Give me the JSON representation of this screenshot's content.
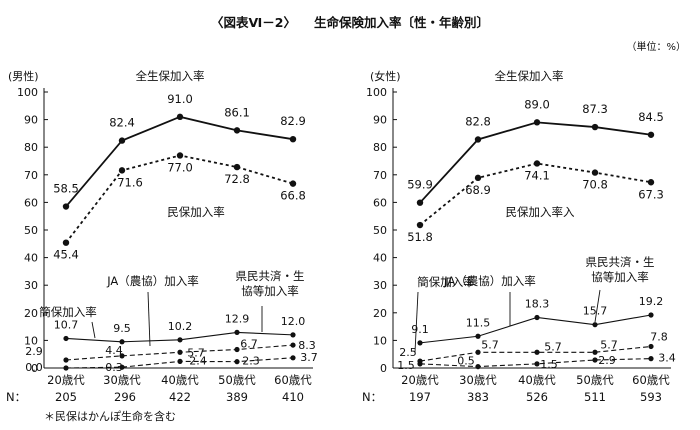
{
  "header": {
    "figure_label": "〈図表Ⅵ－2〉",
    "title": "生命保険加入率〔性・年齢別〕",
    "unit_note": "（単位：%）"
  },
  "footnote": "＊民保はかんぽ生命を含む",
  "chart_data": [
    {
      "type": "line",
      "panel": "(男性)",
      "categories": [
        "20歳代",
        "30歳代",
        "40歳代",
        "50歳代",
        "60歳代"
      ],
      "n_label": "N：",
      "n_values": [
        "205",
        "296",
        "422",
        "389",
        "410"
      ],
      "ylim": [
        0,
        100
      ],
      "yticks": [
        0,
        10,
        20,
        30,
        40,
        50,
        60,
        70,
        80,
        90,
        100
      ],
      "grid": false,
      "series": [
        {
          "name": "全生保加入率",
          "style": "solid",
          "marker": "circle",
          "values": [
            58.5,
            82.4,
            91.0,
            86.1,
            82.9
          ],
          "labels": [
            "58.5",
            "82.4",
            "91.0",
            "86.1",
            "82.9"
          ]
        },
        {
          "name": "民保加入率",
          "style": "dotted",
          "marker": "circle",
          "values": [
            45.4,
            71.6,
            77.0,
            72.8,
            66.8
          ],
          "labels": [
            "45.4",
            "71.6",
            "77.0",
            "72.8",
            "66.8"
          ]
        },
        {
          "name": "簡保加入率",
          "style": "solid",
          "marker": "circle",
          "values": [
            10.7,
            9.5,
            10.2,
            12.9,
            12.0
          ],
          "labels": [
            "10.7",
            "9.5",
            "10.2",
            "12.9",
            "12.0"
          ]
        },
        {
          "name": "JA（農協）加入率",
          "style": "dashed",
          "marker": "circle",
          "values": [
            2.9,
            4.4,
            5.7,
            6.7,
            8.3
          ],
          "labels": [
            "2.9",
            "4.4",
            "5.7",
            "6.7",
            "8.3"
          ]
        },
        {
          "name": "県民共済・生協等加入率",
          "style": "dashed",
          "marker": "circle",
          "values": [
            0.0,
            0.3,
            2.4,
            2.3,
            3.7
          ],
          "labels": [
            "0.0",
            "0.3",
            "2.4",
            "2.3",
            "3.7"
          ]
        }
      ]
    },
    {
      "type": "line",
      "panel": "(女性)",
      "categories": [
        "20歳代",
        "30歳代",
        "40歳代",
        "50歳代",
        "60歳代"
      ],
      "n_label": "N：",
      "n_values": [
        "197",
        "383",
        "526",
        "511",
        "593"
      ],
      "ylim": [
        0,
        100
      ],
      "yticks": [
        0,
        10,
        20,
        30,
        40,
        50,
        60,
        70,
        80,
        90,
        100
      ],
      "grid": false,
      "series": [
        {
          "name": "全生保加入率",
          "style": "solid",
          "marker": "circle",
          "values": [
            59.9,
            82.8,
            89.0,
            87.3,
            84.5
          ],
          "labels": [
            "59.9",
            "82.8",
            "89.0",
            "87.3",
            "84.5"
          ]
        },
        {
          "name": "民保加入率入",
          "style": "dotted",
          "marker": "circle",
          "values": [
            51.8,
            68.9,
            74.1,
            70.8,
            67.3
          ],
          "labels": [
            "51.8",
            "68.9",
            "74.1",
            "70.8",
            "67.3"
          ]
        },
        {
          "name": "県民共済・生協等加入率",
          "style": "solid",
          "marker": "circle",
          "values": [
            9.1,
            11.5,
            18.3,
            15.7,
            19.2
          ],
          "labels": [
            "9.1",
            "11.5",
            "18.3",
            "15.7",
            "19.2"
          ]
        },
        {
          "name": "JA（農協）加入率",
          "style": "dashed",
          "marker": "circle",
          "values": [
            2.5,
            5.7,
            5.7,
            5.7,
            7.8
          ],
          "labels": [
            "2.5",
            "5.7",
            "5.7",
            "5.7",
            "7.8"
          ]
        },
        {
          "name": "簡保加入率",
          "style": "dashed",
          "marker": "circle",
          "values": [
            1.5,
            0.5,
            1.5,
            2.9,
            3.4
          ],
          "labels": [
            "1.5",
            "0.5",
            "1.5",
            "2.9",
            "3.4"
          ]
        }
      ]
    }
  ]
}
